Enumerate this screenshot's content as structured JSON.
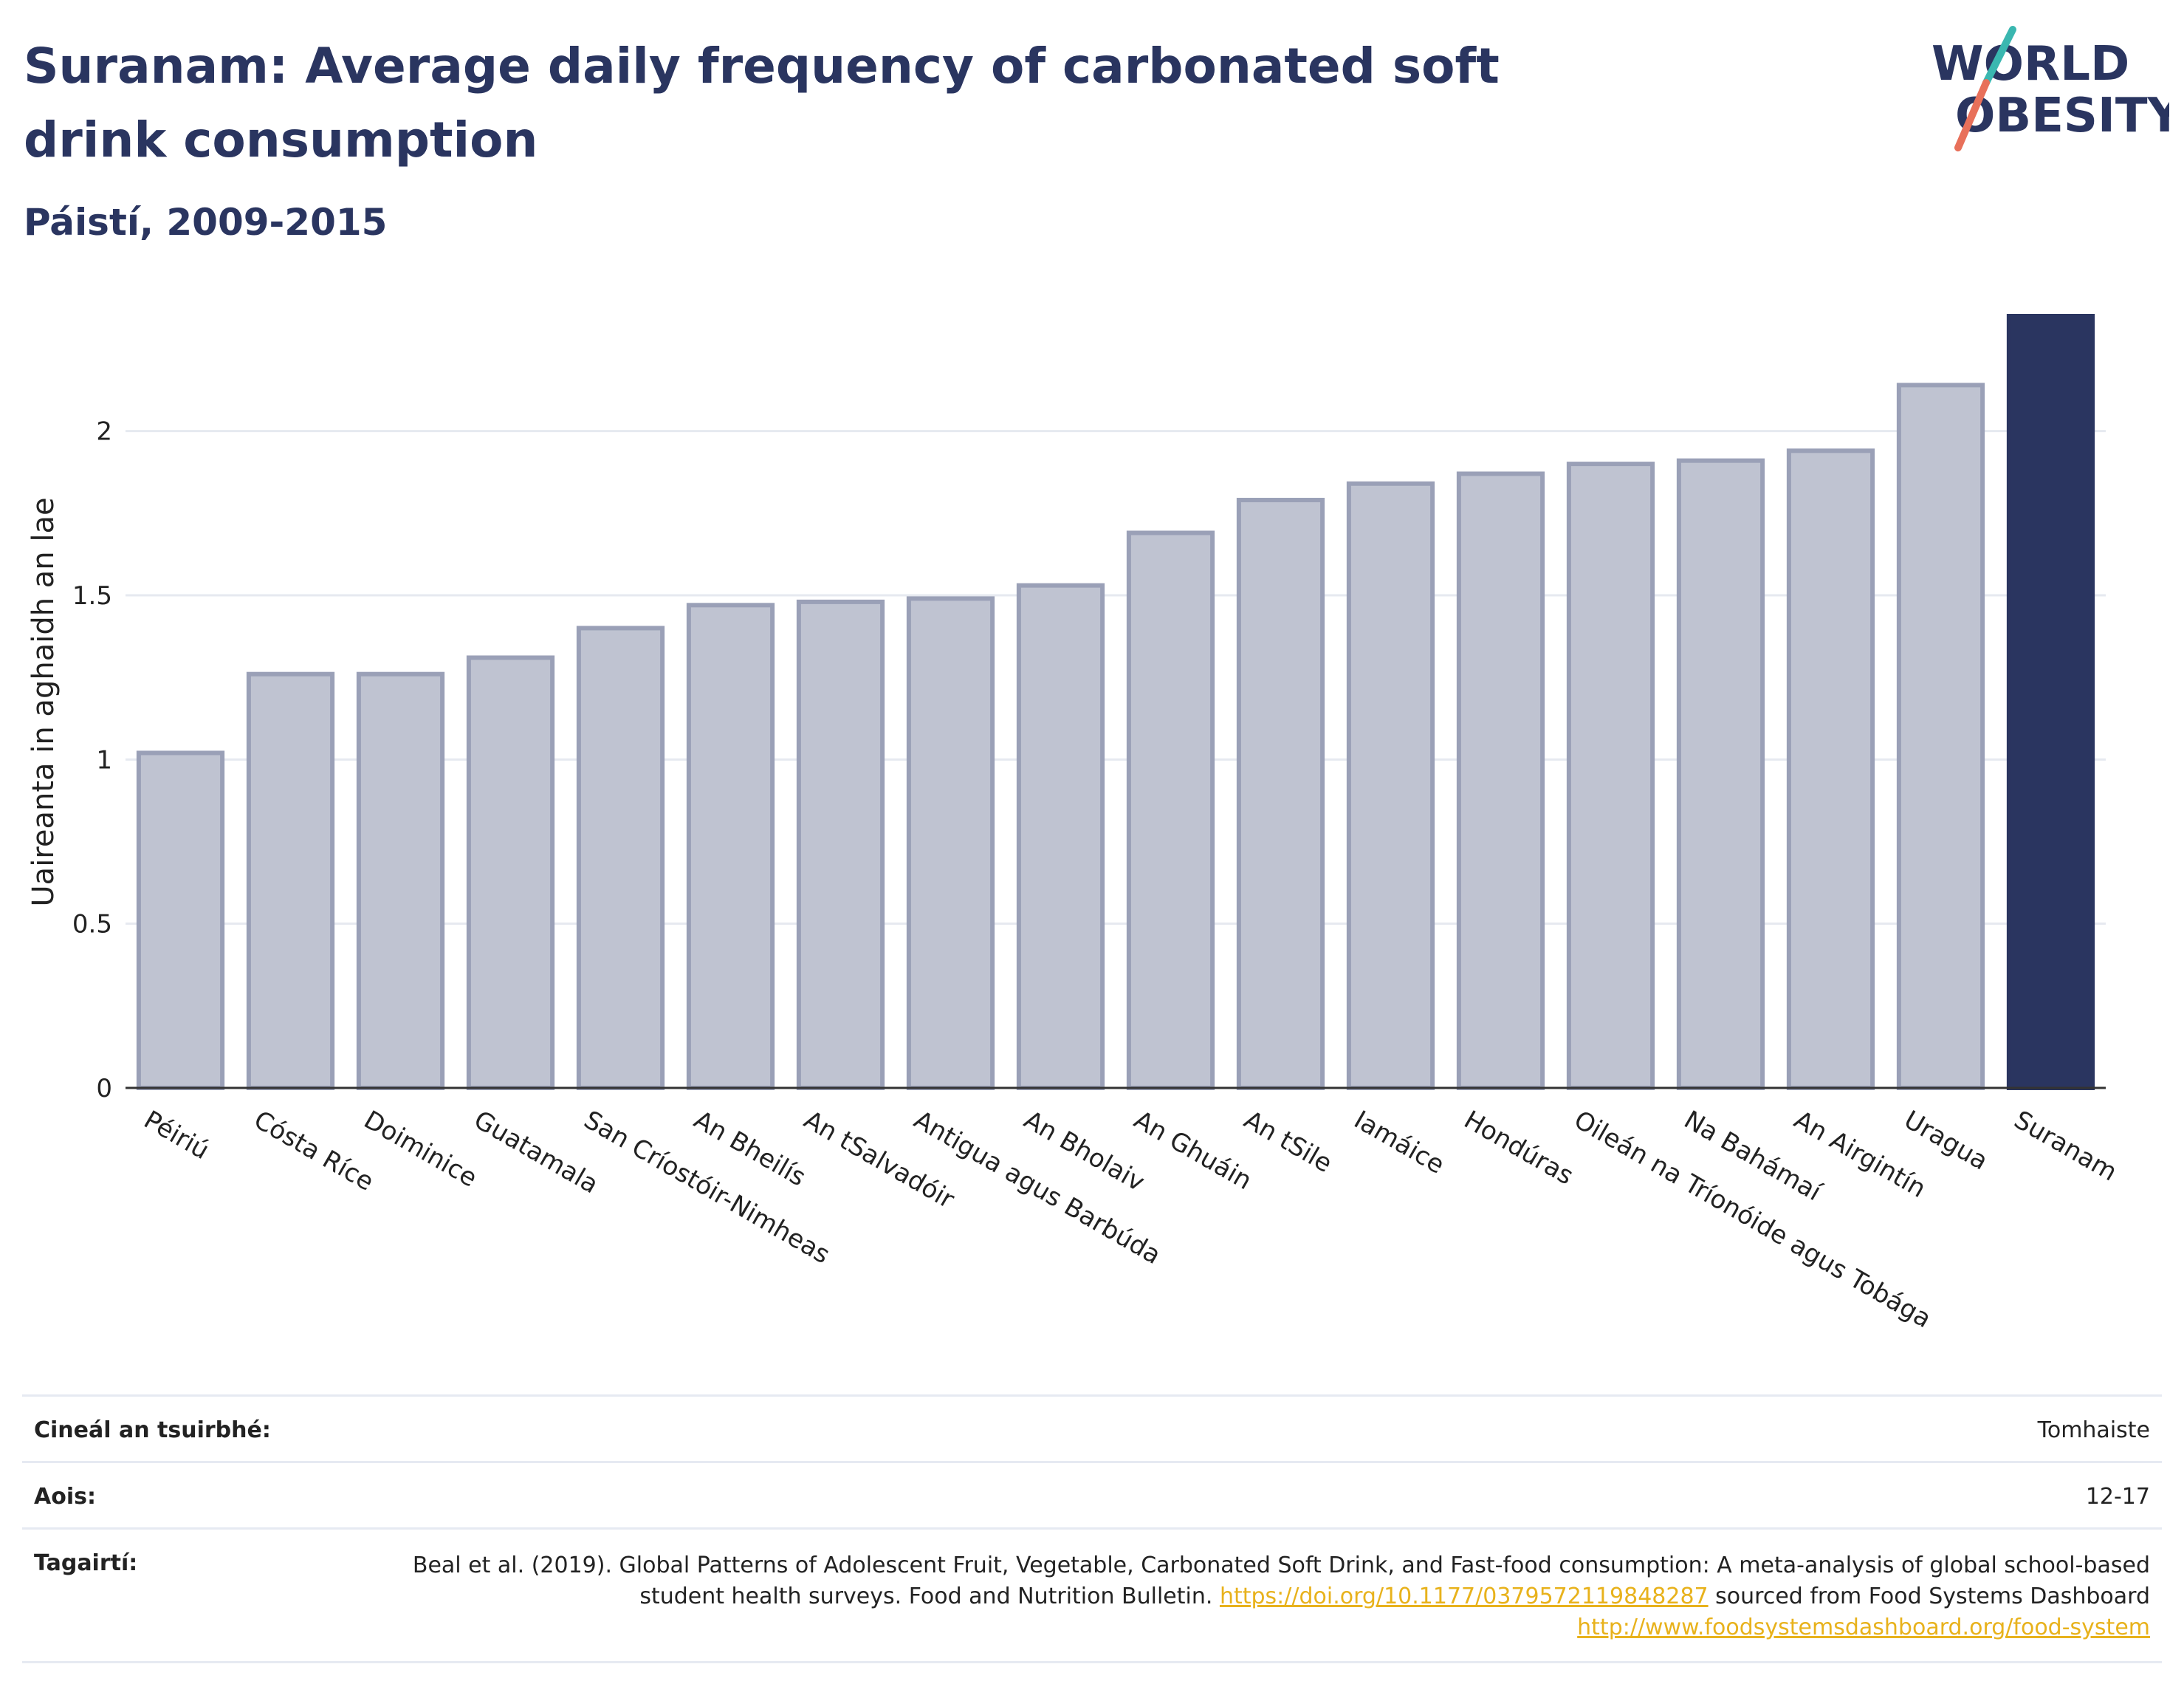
{
  "header": {
    "title": "Suranam: Average daily frequency of carbonated soft drink consumption",
    "subtitle": "Páistí, 2009-2015"
  },
  "logo": {
    "line1": "WORLD",
    "line2": "OBESITY",
    "icon": "world-obesity-logo"
  },
  "colors": {
    "bar_default": "#bfc3d1",
    "bar_default_stroke": "#9aa0b7",
    "bar_highlight": "#2a3560",
    "title": "#2a3560",
    "link": "#e8b21c",
    "grid": "#e6e9f0"
  },
  "chart_data": {
    "type": "bar",
    "categories": [
      "Péiriú",
      "Cósta Ríce",
      "Doiminice",
      "Guatamala",
      "San Críostóir-Nimheas",
      "An Bheilís",
      "An tSalvadóir",
      "Antigua agus Barbúda",
      "An Bholaiv",
      "An Ghuáin",
      "An tSile",
      "Iamáice",
      "Hondúras",
      "Oileán na Tríonóide agus Tobága",
      "Na Bahámaí",
      "An Airgintín",
      "Uragua",
      "Suranam"
    ],
    "values": [
      1.02,
      1.26,
      1.26,
      1.31,
      1.4,
      1.47,
      1.48,
      1.49,
      1.53,
      1.69,
      1.79,
      1.84,
      1.87,
      1.9,
      1.91,
      1.94,
      2.14,
      2.35
    ],
    "highlight": "Suranam",
    "ylabel": "Uaireanta in aghaidh an lae",
    "ylim": [
      0,
      2.35
    ],
    "yticks": [
      0,
      0.5,
      1,
      1.5,
      2
    ],
    "ytick_labels": [
      "0",
      "0.5",
      "1",
      "1.5",
      "2"
    ],
    "grid": true
  },
  "meta": {
    "survey_type_label": "Cineál an tsuirbhé:",
    "survey_type_value": "Tomhaiste",
    "age_label": "Aois:",
    "age_value": "12-17",
    "ref_label": "Tagairtí:",
    "ref_text": "Beal et al. (2019). Global Patterns of Adolescent Fruit, Vegetable, Carbonated Soft Drink, and Fast-food consumption: A meta-analysis of global school-based student health surveys. Food and Nutrition Bulletin.",
    "ref_link1": "https://doi.org/10.1177/0379572119848287",
    "ref_mid": "sourced from Food Systems Dashboard",
    "ref_link2": "http://www.foodsystemsdashboard.org/food-system"
  }
}
